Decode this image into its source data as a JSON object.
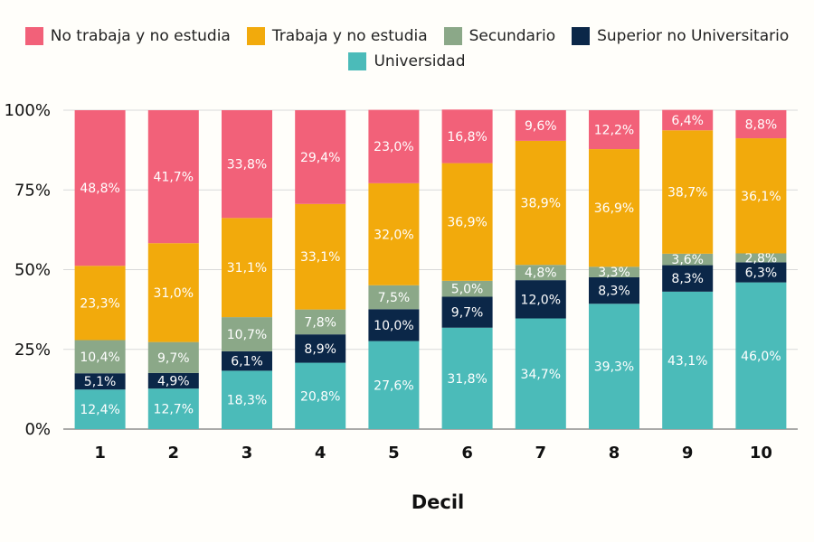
{
  "chart_data": {
    "type": "bar",
    "stacked": true,
    "normalized_percent": true,
    "xlabel": "Decil",
    "ylabel": "",
    "ylim": [
      0,
      100
    ],
    "yticks": [
      "0%",
      "25%",
      "50%",
      "75%",
      "100%"
    ],
    "ytick_values": [
      0,
      25,
      50,
      75,
      100
    ],
    "grid": true,
    "legend_position": "top",
    "categories": [
      "1",
      "2",
      "3",
      "4",
      "5",
      "6",
      "7",
      "8",
      "9",
      "10"
    ],
    "series": [
      {
        "name": "Universidad",
        "color": "#4bbbb9",
        "values": [
          12.4,
          12.7,
          18.3,
          20.8,
          27.6,
          31.8,
          34.7,
          39.3,
          43.1,
          46.0
        ],
        "labels": [
          "12,4%",
          "12,7%",
          "18,3%",
          "20,8%",
          "27,6%",
          "31,8%",
          "34,7%",
          "39,3%",
          "43,1%",
          "46,0%"
        ]
      },
      {
        "name": "Superior no Universitario",
        "color": "#0b2748",
        "values": [
          5.1,
          4.9,
          6.1,
          8.9,
          10.0,
          9.7,
          12.0,
          8.3,
          8.3,
          6.3
        ],
        "labels": [
          "5,1%",
          "4,9%",
          "6,1%",
          "8,9%",
          "10,0%",
          "9,7%",
          "12,0%",
          "8,3%",
          "8,3%",
          "6,3%"
        ]
      },
      {
        "name": "Secundario",
        "color": "#8ba888",
        "values": [
          10.4,
          9.7,
          10.7,
          7.8,
          7.5,
          5.0,
          4.8,
          3.3,
          3.6,
          2.8
        ],
        "labels": [
          "10,4%",
          "9,7%",
          "10,7%",
          "7,8%",
          "7,5%",
          "5,0%",
          "4,8%",
          "3,3%",
          "3,6%",
          "2,8%"
        ]
      },
      {
        "name": "Trabaja y no estudia",
        "color": "#f2aa0c",
        "values": [
          23.3,
          31.0,
          31.1,
          33.1,
          32.0,
          36.9,
          38.9,
          36.9,
          38.7,
          36.1
        ],
        "labels": [
          "23,3%",
          "31,0%",
          "31,1%",
          "33,1%",
          "32,0%",
          "36,9%",
          "38,9%",
          "36,9%",
          "38,7%",
          "36,1%"
        ]
      },
      {
        "name": "No trabaja y no estudia",
        "color": "#f26179",
        "values": [
          48.8,
          41.7,
          33.8,
          29.4,
          23.0,
          16.8,
          9.6,
          12.2,
          6.4,
          8.8
        ],
        "labels": [
          "48,8%",
          "41,7%",
          "33,8%",
          "29,4%",
          "23,0%",
          "16,8%",
          "9,6%",
          "12,2%",
          "6,4%",
          "8,8%"
        ]
      }
    ],
    "legend_order": [
      "No trabaja y no estudia",
      "Trabaja y no estudia",
      "Secundario",
      "Superior no Universitario",
      "Universidad"
    ]
  }
}
